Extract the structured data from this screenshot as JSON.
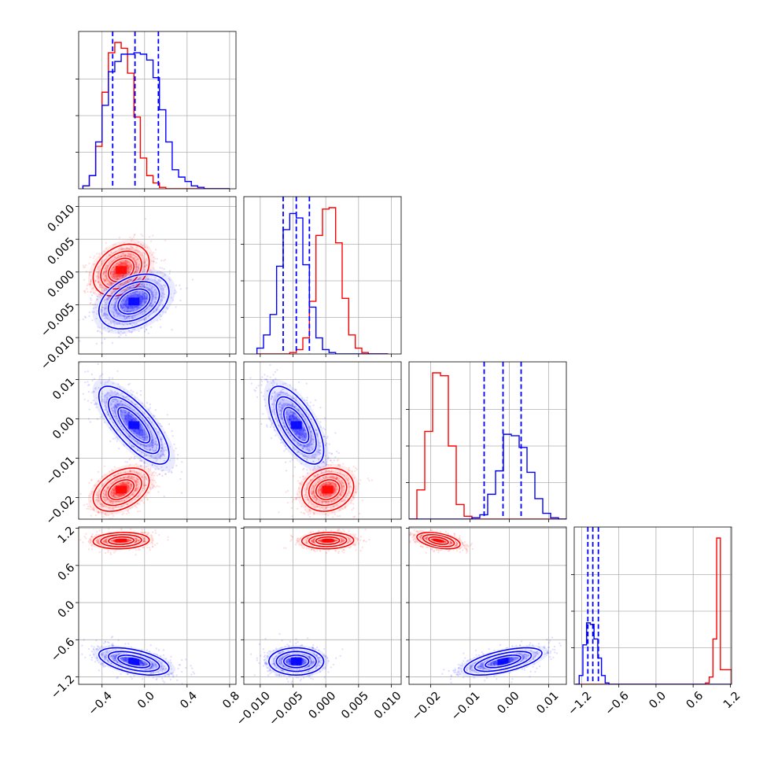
{
  "figure": {
    "type": "corner-plot",
    "n_parameters": 4,
    "colors": {
      "red": "#ff0000",
      "blue": "#0000ff",
      "grid": "#b0b0b0",
      "axes": "#000000"
    },
    "grid": true
  },
  "chart_data": {
    "type": "corner",
    "title": "",
    "parameters": [
      {
        "name": "",
        "range": [
          -0.62,
          0.86
        ],
        "ticks": [
          -0.4,
          0.0,
          0.4,
          0.8
        ],
        "tick_labels": [
          "−0.4",
          "0.0",
          "0.4",
          "0.8"
        ]
      },
      {
        "name": "",
        "range": [
          -0.0125,
          0.0115
        ],
        "ticks": [
          -0.01,
          -0.005,
          0.0,
          0.005,
          0.01
        ],
        "tick_labels": [
          "−0.010",
          "−0.005",
          "0.000",
          "0.005",
          "0.010"
        ]
      },
      {
        "name": "",
        "range": [
          -0.0255,
          0.0145
        ],
        "ticks": [
          -0.02,
          -0.01,
          0.0,
          0.01
        ],
        "tick_labels": [
          "−0.02",
          "−0.01",
          "0.00",
          "0.01"
        ]
      },
      {
        "name": "",
        "range": [
          -1.32,
          1.22
        ],
        "ticks": [
          -1.2,
          -0.6,
          0.0,
          0.6,
          1.2
        ],
        "tick_labels": [
          "−1.2",
          "−0.6",
          "0.0",
          "0.6",
          "1.2"
        ]
      }
    ],
    "series": [
      {
        "color": "#ff0000",
        "mean": [
          -0.22,
          0.0003,
          -0.018,
          1.0
        ],
        "std": [
          0.12,
          0.0018,
          0.0025,
          0.06
        ],
        "histograms": [
          {
            "edges": [
              -0.58,
              -0.52,
              -0.46,
              -0.4,
              -0.34,
              -0.28,
              -0.22,
              -0.16,
              -0.1,
              -0.04,
              0.02,
              0.08,
              0.14,
              0.2,
              0.26,
              0.32,
              0.38,
              0.44,
              0.5,
              0.56,
              0.62,
              0.68,
              0.74,
              0.8
            ],
            "counts": [
              0.02,
              0.09,
              0.29,
              0.66,
              0.93,
              1.0,
              0.96,
              0.79,
              0.49,
              0.21,
              0.09,
              0.04,
              0.01,
              0.0,
              0.0,
              0.0,
              0.0,
              0.0,
              0.0,
              0.0,
              0.0,
              0.0,
              0.0
            ]
          },
          {
            "edges": [
              -0.0105,
              -0.0095,
              -0.0085,
              -0.0075,
              -0.0065,
              -0.0055,
              -0.0045,
              -0.0035,
              -0.0025,
              -0.0015,
              -0.0005,
              0.0005,
              0.0015,
              0.0025,
              0.0035,
              0.0045,
              0.0055,
              0.0065,
              0.0075,
              0.0085,
              0.0095
            ],
            "counts": [
              0,
              0,
              0,
              0,
              0,
              0.01,
              0.03,
              0.11,
              0.36,
              0.81,
              0.99,
              1.0,
              0.76,
              0.38,
              0.13,
              0.04,
              0.01,
              0,
              0,
              0
            ]
          },
          {
            "edges": [
              -0.0255,
              -0.0235,
              -0.0215,
              -0.0195,
              -0.0175,
              -0.0155,
              -0.0135,
              -0.0115,
              -0.0095,
              -0.0075,
              -0.0055,
              -0.0035,
              -0.0015,
              0.0005,
              0.0025,
              0.0045,
              0.0065,
              0.0085,
              0.0105,
              0.0125,
              0.0145
            ],
            "counts": [
              0.0,
              0.2,
              0.6,
              1.0,
              0.98,
              0.5,
              0.1,
              0.02,
              0,
              0,
              0,
              0,
              0,
              0,
              0,
              0,
              0,
              0,
              0,
              0
            ]
          },
          {
            "edges": [
              -1.3,
              -1.24,
              -1.18,
              -1.12,
              -1.06,
              -1.0,
              -0.94,
              -0.88,
              -0.82,
              -0.76,
              -0.7,
              -0.64,
              -0.58,
              -0.52,
              -0.46,
              -0.4,
              -0.34,
              -0.28,
              -0.22,
              -0.16,
              -0.1,
              -0.04,
              0.02,
              0.08,
              0.14,
              0.2,
              0.26,
              0.32,
              0.38,
              0.44,
              0.5,
              0.56,
              0.62,
              0.68,
              0.74,
              0.8,
              0.86,
              0.92,
              0.98,
              1.04,
              1.1,
              1.16,
              1.22
            ],
            "counts": [
              0,
              0,
              0,
              0,
              0,
              0,
              0,
              0,
              0,
              0,
              0,
              0,
              0,
              0,
              0,
              0,
              0,
              0,
              0,
              0,
              0,
              0,
              0,
              0,
              0,
              0,
              0,
              0,
              0,
              0,
              0,
              0,
              0,
              0,
              0,
              0.01,
              0.05,
              0.31,
              1.0,
              0.1,
              0.1,
              0.1
            ]
          }
        ]
      },
      {
        "color": "#0000ff",
        "mean": [
          -0.1,
          -0.0045,
          -0.0016,
          -0.95
        ],
        "std": [
          0.15,
          0.0019,
          0.0045,
          0.1
        ],
        "quantiles": [
          [
            -0.3,
            -0.09,
            0.13
          ],
          [
            -0.0065,
            -0.0045,
            -0.0025
          ],
          [
            -0.0064,
            -0.0016,
            0.003
          ],
          [
            -1.1,
            -1.02,
            -0.93
          ]
        ],
        "histograms": [
          {
            "edges": [
              -0.58,
              -0.52,
              -0.46,
              -0.4,
              -0.34,
              -0.28,
              -0.22,
              -0.16,
              -0.1,
              -0.04,
              0.02,
              0.08,
              0.14,
              0.2,
              0.26,
              0.32,
              0.38,
              0.44,
              0.5,
              0.56,
              0.62,
              0.68,
              0.74,
              0.8
            ],
            "counts": [
              0.02,
              0.09,
              0.32,
              0.57,
              0.8,
              0.87,
              0.92,
              0.92,
              0.93,
              0.92,
              0.88,
              0.76,
              0.54,
              0.32,
              0.13,
              0.08,
              0.05,
              0.02,
              0.01,
              0,
              0,
              0,
              0
            ]
          },
          {
            "edges": [
              -0.0105,
              -0.0095,
              -0.0085,
              -0.0075,
              -0.0065,
              -0.0055,
              -0.0045,
              -0.0035,
              -0.0025,
              -0.0015,
              -0.0005,
              0.0005,
              0.0015,
              0.0025,
              0.0035,
              0.0045,
              0.0055,
              0.0065,
              0.0075,
              0.0085,
              0.0095
            ],
            "counts": [
              0.04,
              0.13,
              0.27,
              0.6,
              0.85,
              0.96,
              0.93,
              0.61,
              0.32,
              0.11,
              0.03,
              0.01,
              0,
              0,
              0,
              0,
              0,
              0,
              0,
              0
            ]
          },
          {
            "edges": [
              -0.0255,
              -0.0235,
              -0.0215,
              -0.0195,
              -0.0175,
              -0.0155,
              -0.0135,
              -0.0115,
              -0.0095,
              -0.0075,
              -0.0055,
              -0.0035,
              -0.0015,
              0.0005,
              0.0025,
              0.0045,
              0.0065,
              0.0085,
              0.0105,
              0.0125,
              0.0145
            ],
            "counts": [
              0,
              0,
              0,
              0,
              0,
              0,
              0,
              0,
              0.01,
              0.03,
              0.17,
              0.33,
              0.58,
              0.57,
              0.49,
              0.32,
              0.14,
              0.04,
              0.01,
              0.0
            ]
          },
          {
            "edges": [
              -1.3,
              -1.24,
              -1.18,
              -1.12,
              -1.06,
              -1.0,
              -0.94,
              -0.88,
              -0.82,
              -0.76,
              -0.7,
              -0.64,
              -0.58,
              -0.52,
              -0.46,
              -0.4,
              -0.34,
              -0.28,
              -0.22,
              -0.16,
              -0.1,
              -0.04,
              0.02,
              0.08,
              0.14,
              0.2,
              0.26,
              0.32,
              0.38,
              0.44,
              0.5,
              0.56,
              0.62,
              0.68,
              0.74,
              0.8,
              0.86,
              0.92,
              0.98,
              1.04,
              1.1,
              1.16,
              1.22
            ],
            "counts": [
              0.0,
              0.06,
              0.27,
              0.42,
              0.41,
              0.31,
              0.18,
              0.06,
              0.01,
              0,
              0,
              0,
              0,
              0,
              0,
              0,
              0,
              0,
              0,
              0,
              0,
              0,
              0,
              0,
              0,
              0,
              0,
              0,
              0,
              0,
              0,
              0,
              0,
              0,
              0,
              0,
              0,
              0,
              0,
              0,
              0,
              0
            ]
          }
        ]
      }
    ],
    "correlations": {
      "red": {
        "1-0": 0.3,
        "2-0": 0.4,
        "2-1": 0.15,
        "3-0": 0.1,
        "3-1": 0.05,
        "3-2": -0.45
      },
      "blue": {
        "1-0": 0.35,
        "2-0": -0.75,
        "2-1": -0.65,
        "3-0": -0.5,
        "3-1": 0.0,
        "3-2": 0.6
      }
    },
    "contour_levels": [
      0.39,
      0.86,
      0.99
    ]
  }
}
